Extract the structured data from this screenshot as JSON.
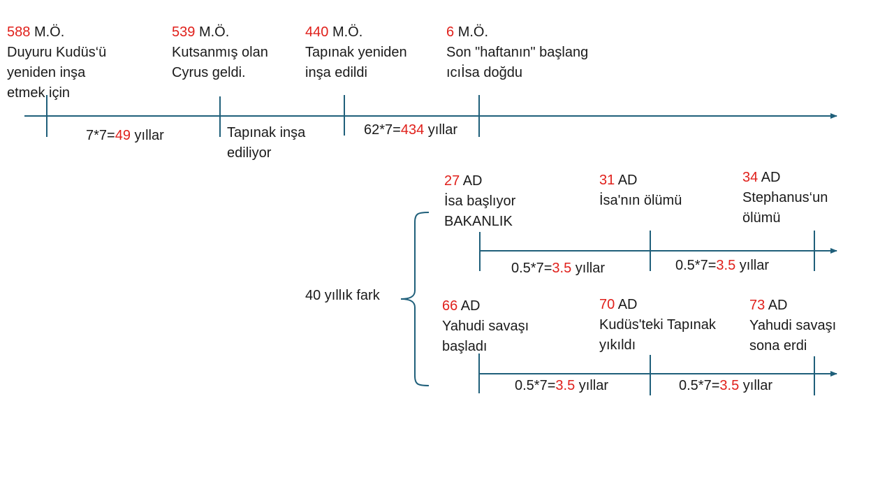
{
  "colors": {
    "accent_red": "#e0201b",
    "line_blue": "#1f5f7a",
    "text": "#1a1a1a"
  },
  "timeline1": {
    "events": [
      {
        "year": "588",
        "era": "M.Ö.",
        "lines": [
          "Duyuru Kudüs‘ü",
          "yeniden inşa",
          "etmek için"
        ]
      },
      {
        "year": "539",
        "era": "M.Ö.",
        "lines": [
          "Kutsanmış olan",
          "Cyrus geldi."
        ]
      },
      {
        "year": "440",
        "era": "M.Ö.",
        "lines": [
          "Tapınak yeniden",
          "inşa edildi"
        ]
      },
      {
        "year": "6",
        "era": "M.Ö.",
        "lines": [
          "Son \"haftanın\" başlang",
          "ıcıİsa doğdu"
        ]
      }
    ],
    "intervals": [
      {
        "pre": "7*7=",
        "num": "49",
        "post": " yıllar"
      },
      {
        "pre": "62*7=",
        "num": "434",
        "post": " yıllar"
      }
    ],
    "note_lines": [
      "Tapınak inşa",
      "ediliyor"
    ]
  },
  "timeline2": {
    "events": [
      {
        "year": "27",
        "era": "AD",
        "lines": [
          "İsa başlıyor",
          "BAKANLIK"
        ]
      },
      {
        "year": "31",
        "era": "AD",
        "lines": [
          "İsa'nın ölümü"
        ]
      },
      {
        "year": "34",
        "era": "AD",
        "lines": [
          "Stephanus‘un",
          "ölümü"
        ]
      }
    ],
    "intervals": [
      {
        "pre": "0.5*7=",
        "num": "3.5",
        "post": " yıllar"
      },
      {
        "pre": "0.5*7=",
        "num": "3.5",
        "post": " yıllar"
      }
    ]
  },
  "timeline3": {
    "events": [
      {
        "year": "66",
        "era": "AD",
        "lines": [
          "Yahudi savaşı",
          "başladı"
        ]
      },
      {
        "year": "70",
        "era": "AD",
        "lines": [
          "Kudüs'teki Tapınak",
          "yıkıldı"
        ]
      },
      {
        "year": "73",
        "era": "AD",
        "lines": [
          "Yahudi savaşı",
          "sona erdi"
        ]
      }
    ],
    "intervals": [
      {
        "pre": "0.5*7=",
        "num": "3.5",
        "post": " yıllar"
      },
      {
        "pre": "0.5*7=",
        "num": "3.5",
        "post": " yıllar"
      }
    ]
  },
  "gap_label": "40 yıllık fark"
}
